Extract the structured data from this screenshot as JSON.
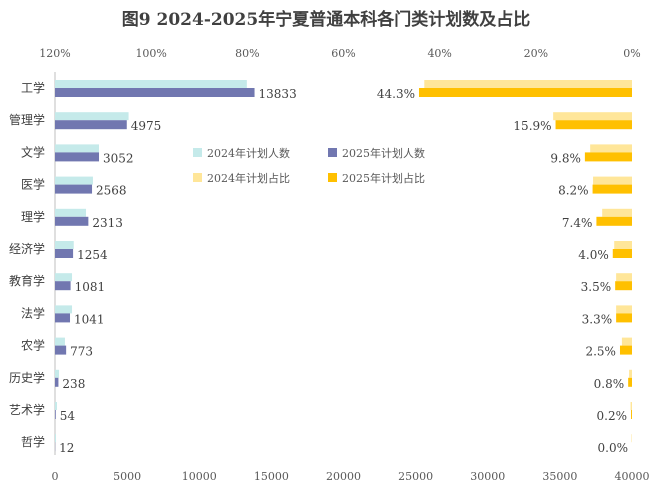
{
  "chart_data": {
    "type": "bar",
    "title": "图9  2024-2025年宁夏普通本科各门类计划数及占比",
    "categories": [
      "工学",
      "管理学",
      "文学",
      "医学",
      "理学",
      "经济学",
      "教育学",
      "法学",
      "农学",
      "历史学",
      "艺术学",
      "哲学"
    ],
    "series": [
      {
        "name": "2024年计划人数",
        "axis": "bottom",
        "color": "#C5EAEA",
        "values": [
          13300,
          5100,
          3050,
          2630,
          2150,
          1300,
          1180,
          1180,
          690,
          280,
          140,
          70
        ]
      },
      {
        "name": "2025年计划人数",
        "axis": "bottom",
        "color": "#7177B0",
        "values": [
          13833,
          4975,
          3052,
          2568,
          2313,
          1254,
          1081,
          1041,
          773,
          238,
          54,
          12
        ],
        "labels": [
          "13833",
          "4975",
          "3052",
          "2568",
          "2313",
          "1254",
          "1081",
          "1041",
          "773",
          "238",
          "54",
          "12"
        ]
      },
      {
        "name": "2024年计划占比",
        "axis": "top",
        "color": "#FFE699",
        "values": [
          43.2,
          16.4,
          8.7,
          8.1,
          6.2,
          3.7,
          3.3,
          3.3,
          2.1,
          0.6,
          0.3,
          0.1
        ]
      },
      {
        "name": "2025年计划占比",
        "axis": "top",
        "color": "#FFC000",
        "values": [
          44.3,
          15.9,
          9.8,
          8.2,
          7.4,
          4.0,
          3.5,
          3.3,
          2.5,
          0.8,
          0.2,
          0.0
        ],
        "labels": [
          "44.3%",
          "15.9%",
          "9.8%",
          "8.2%",
          "7.4%",
          "4.0%",
          "3.5%",
          "3.3%",
          "2.5%",
          "0.8%",
          "0.2%",
          "0.0%"
        ]
      }
    ],
    "x_bottom": {
      "range": [
        0,
        40000
      ],
      "ticks": [
        "0",
        "5000",
        "10000",
        "15000",
        "20000",
        "25000",
        "30000",
        "35000",
        "40000"
      ]
    },
    "x_top": {
      "range": [
        120,
        0
      ],
      "reversed": true,
      "ticks": [
        "120%",
        "100%",
        "80%",
        "60%",
        "40%",
        "20%",
        "0%"
      ]
    },
    "legend": {
      "placement": "center",
      "entries": [
        "2024年计划人数",
        "2025年计划人数",
        "2024年计划占比",
        "2025年计划占比"
      ]
    },
    "grid": false
  }
}
